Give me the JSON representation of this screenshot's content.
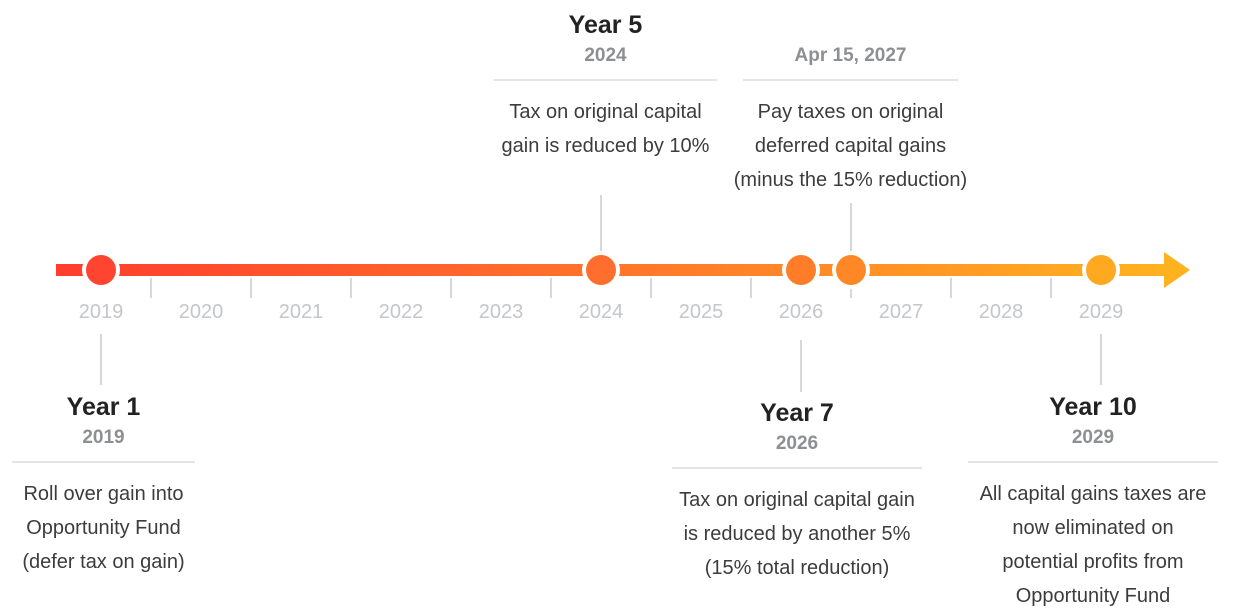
{
  "colors": {
    "line_start": "#ff3d2e",
    "line_end": "#ffb21f",
    "tick": "#d7d8da",
    "connector": "#d7d8da",
    "year_label": "#c4c6c9",
    "title": "#222222",
    "subtitle": "#8d8f93",
    "text": "#3c3c3c",
    "rule": "#e3e4e6"
  },
  "timeline": {
    "years": [
      "2019",
      "2020",
      "2021",
      "2022",
      "2023",
      "2024",
      "2025",
      "2026",
      "2027",
      "2028",
      "2029"
    ],
    "markers": [
      {
        "position": 2019.0,
        "color": "#ff4530"
      },
      {
        "position": 2024.0,
        "color": "#ff6e2c"
      },
      {
        "position": 2026.0,
        "color": "#ff7d29"
      },
      {
        "position": 2026.5,
        "color": "#ff8826"
      },
      {
        "position": 2029.0,
        "color": "#ffa820"
      }
    ]
  },
  "events": {
    "year1": {
      "title": "Year 1",
      "subtitle": "2019",
      "lines": [
        "Roll over gain into",
        "Opportunity Fund",
        "(defer tax on gain)"
      ]
    },
    "year5": {
      "title": "Year 5",
      "subtitle": "2024",
      "lines": [
        "Tax on original capital",
        "gain is reduced by 10%"
      ]
    },
    "apr2027": {
      "title": "",
      "subtitle": "Apr 15, 2027",
      "lines": [
        "Pay taxes on original",
        "deferred capital gains",
        "(minus the 15% reduction)"
      ]
    },
    "year7": {
      "title": "Year 7",
      "subtitle": "2026",
      "lines": [
        "Tax on original capital gain",
        "is reduced by another 5%",
        "(15% total reduction)"
      ]
    },
    "year10": {
      "title": "Year 10",
      "subtitle": "2029",
      "lines": [
        "All capital gains taxes are",
        "now eliminated on",
        "potential profits from",
        "Opportunity Fund"
      ]
    }
  }
}
